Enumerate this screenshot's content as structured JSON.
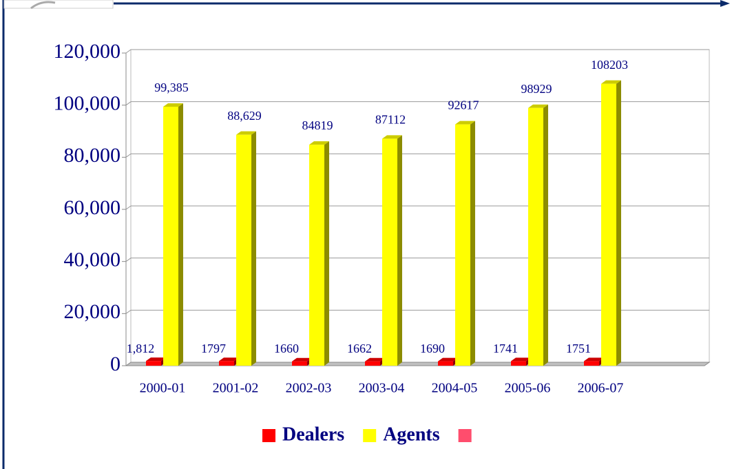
{
  "chart_data": {
    "type": "bar3d",
    "categories": [
      "2000-01",
      "2001-02",
      "2002-03",
      "2003-04",
      "2004-05",
      "2005-06",
      "2006-07"
    ],
    "series": [
      {
        "name": "Dealers",
        "color": "#ff0000",
        "values": [
          1812,
          1797,
          1660,
          1662,
          1690,
          1741,
          1751
        ],
        "value_labels": [
          "1,812",
          "1797",
          "1660",
          "1662",
          "1690",
          "1741",
          "1751"
        ]
      },
      {
        "name": "Agents",
        "color": "#ffff00",
        "values": [
          99385,
          88629,
          84819,
          87112,
          92617,
          98929,
          108203
        ],
        "value_labels": [
          "99,385",
          "88,629",
          "84819",
          "87112",
          "92617",
          "98929",
          "108203"
        ]
      }
    ],
    "ylim": [
      0,
      120000
    ],
    "yticks": [
      0,
      {
        "value": 20000,
        "label": "20,000"
      },
      {
        "value": 40000,
        "label": "40,000"
      },
      {
        "value": 60000,
        "label": "60,000"
      },
      {
        "value": 80000,
        "label": "80,000"
      },
      {
        "value": 100000,
        "label": "100,000"
      },
      {
        "value": 120000,
        "label": "120,000"
      }
    ],
    "grid": true
  }
}
